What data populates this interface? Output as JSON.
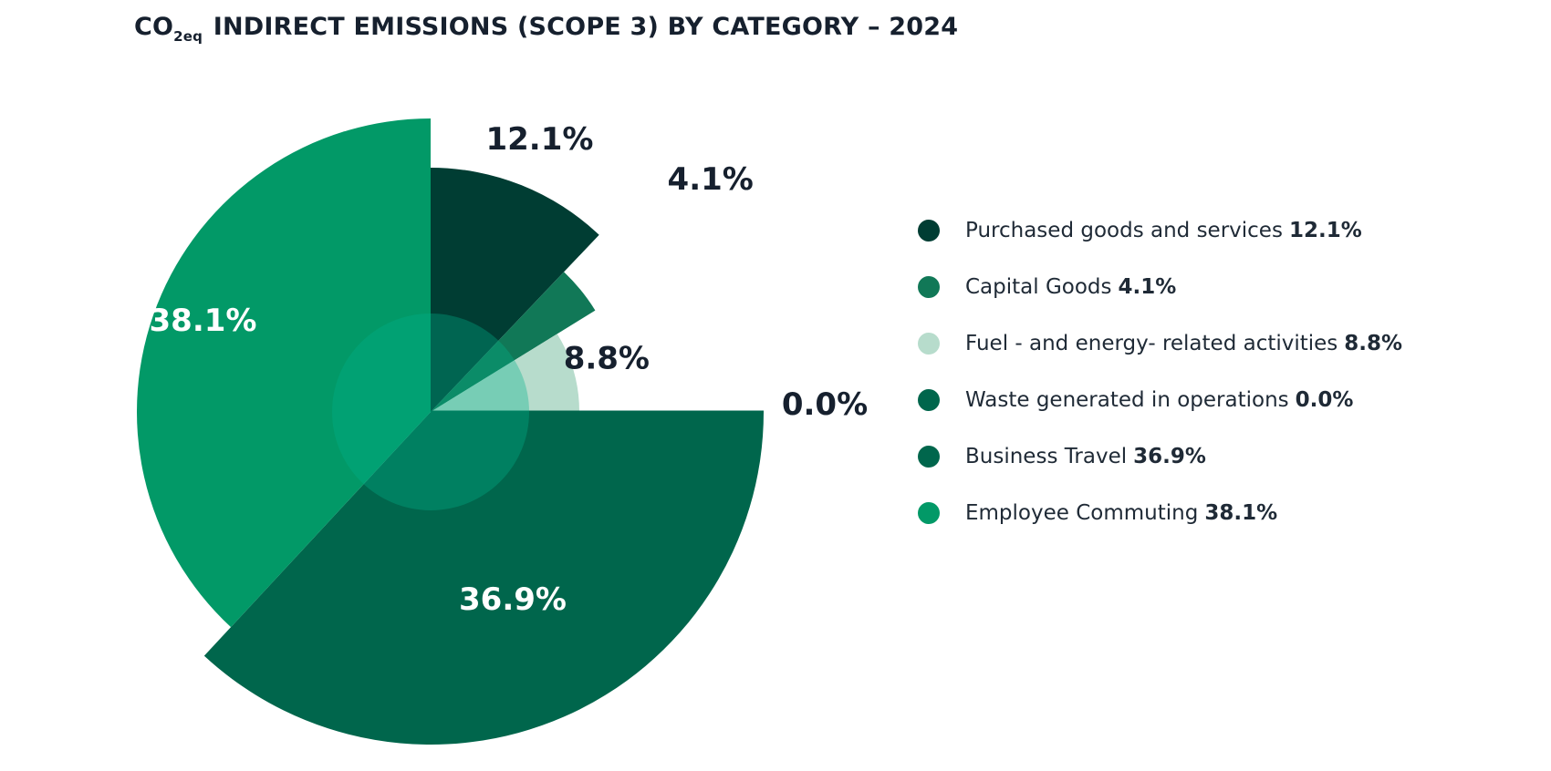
{
  "title": {
    "prefix": "CO",
    "subscript": "2eq",
    "text": " INDIRECT EMISSIONS (SCOPE 3) BY CATEGORY – 2024"
  },
  "chart_data": {
    "type": "pie",
    "title": "CO2eq INDIRECT EMISSIONS (SCOPE 3) BY CATEGORY – 2024",
    "legend_position": "right",
    "slices": [
      {
        "label": "Purchased goods and services",
        "value": 12.1,
        "display": "12.1%",
        "color": "#003d33"
      },
      {
        "label": "Capital Goods",
        "value": 4.1,
        "display": "4.1%",
        "color": "#117857"
      },
      {
        "label": "Fuel - and energy- related activities",
        "value": 8.8,
        "display": "8.8%",
        "color": "#b7dccc"
      },
      {
        "label": "Waste generated in operations",
        "value": 0.0,
        "display": "0.0%",
        "color": "#00664c"
      },
      {
        "label": "Business Travel",
        "value": 36.9,
        "display": "36.9%",
        "color": "#00664c"
      },
      {
        "label": "Employee Commuting",
        "value": 38.1,
        "display": "38.1%",
        "color": "#029967"
      }
    ],
    "center_circle_color": "#00b28a"
  }
}
